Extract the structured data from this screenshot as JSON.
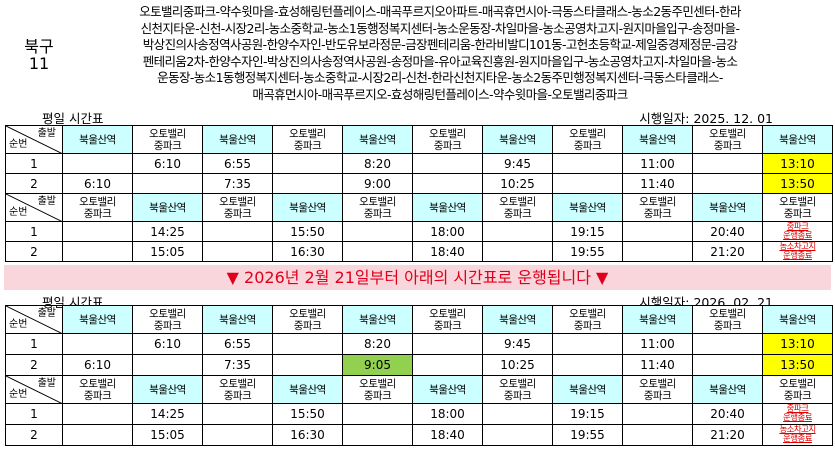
{
  "header": {
    "district": "북구",
    "route": "11",
    "stops": [
      "오토밸리중파크-약수윗마을-효성해링턴플레이스-매곡푸르지오아파트-매곡휴먼시아-극동스타클래스-농소2동주민센터-한라",
      "신천지타운-신천-시장2리-농소중학교-농소1동행정복지센터-농소운동장-차일마을-농소공영차고지-원지마을입구-송정마을-",
      "박상진의사송정역사공원-한양수자인-반도유보라정문-금장펜테리움-한라비발디101동-고헌초등학교-제일중경제정문-금강",
      "펜테리움2차-한양수자인-박상진의사송정역사공원-송정마을-유아교육진흥원-원지마을입구-농소공영차고지-차일마을-농소",
      "운동장-농소1동행정복지센터-농소중학교-시장2리-신천-한라신천지타운-농소2동주민행정복지센터-극동스타클래스-",
      "매곡휴먼시아-매곡푸르지오-효성해링턴플레이스-약수윗마을-오토밸리중파크"
    ]
  },
  "notice": "▼ 2026년 2월 21일부터 아래의 시간표로 운행됩니다 ▼",
  "sections": [
    {
      "title": "평일 시간표",
      "date": "시행일자: 2025. 12. 01",
      "blocks": [
        {
          "corner": [
            "출발",
            "순번"
          ],
          "header": [
            "북울산역",
            [
              "오토밸리",
              "중파크"
            ],
            "북울산역",
            [
              "오토밸리",
              "중파크"
            ],
            "북울산역",
            [
              "오토밸리",
              "중파크"
            ],
            "북울산역",
            [
              "오토밸리",
              "중파크"
            ],
            "북울산역",
            [
              "오토밸리",
              "중파크"
            ],
            "북울산역"
          ],
          "rows": [
            [
              "1",
              null,
              "6:10",
              "6:55",
              null,
              "8:20",
              null,
              "9:45",
              null,
              "11:00",
              null,
              "13:10"
            ],
            [
              "2",
              "6:10",
              null,
              "7:35",
              null,
              "9:00",
              null,
              "10:25",
              null,
              "11:40",
              null,
              "13:50"
            ]
          ]
        },
        {
          "corner": [
            "출발",
            "순번"
          ],
          "header": [
            [
              "오토밸리",
              "중파크"
            ],
            "북울산역",
            [
              "오토밸리",
              "중파크"
            ],
            "북울산역",
            [
              "오토밸리",
              "중파크"
            ],
            "북울산역",
            [
              "오토밸리",
              "중파크"
            ],
            "북울산역",
            [
              "오토밸리",
              "중파크"
            ],
            "북울산역",
            [
              "오토밸리",
              "중파크"
            ]
          ],
          "rows": [
            [
              "1",
              null,
              "14:25",
              null,
              "15:50",
              null,
              "18:00",
              null,
              "19:15",
              null,
              "20:40",
              [
                "중파크",
                "운행종료"
              ]
            ],
            [
              "2",
              null,
              "15:05",
              null,
              "16:30",
              null,
              "18:40",
              null,
              "19:55",
              null,
              "21:20",
              [
                "농소차고지",
                "운행종료"
              ]
            ]
          ]
        }
      ]
    },
    {
      "title": "평일 시간표",
      "date": "시행일자: 2026. 02. 21",
      "blocks": [
        {
          "corner": [
            "출발",
            "순번"
          ],
          "header": [
            "북울산역",
            [
              "오토밸리",
              "중파크"
            ],
            "북울산역",
            [
              "오토밸리",
              "중파크"
            ],
            "북울산역",
            [
              "오토밸리",
              "중파크"
            ],
            "북울산역",
            [
              "오토밸리",
              "중파크"
            ],
            "북울산역",
            [
              "오토밸리",
              "중파크"
            ],
            "북울산역"
          ],
          "rows": [
            [
              "1",
              null,
              "6:10",
              "6:55",
              null,
              "8:20",
              null,
              "9:45",
              null,
              "11:00",
              null,
              "13:10"
            ],
            [
              "2",
              "6:10",
              null,
              "7:35",
              null,
              "9:05",
              null,
              "10:25",
              null,
              "11:40",
              null,
              "13:50"
            ]
          ]
        },
        {
          "corner": [
            "출발",
            "순번"
          ],
          "header": [
            [
              "오토밸리",
              "중파크"
            ],
            "북울산역",
            [
              "오토밸리",
              "중파크"
            ],
            "북울산역",
            [
              "오토밸리",
              "중파크"
            ],
            "북울산역",
            [
              "오토밸리",
              "중파크"
            ],
            "북울산역",
            [
              "오토밸리",
              "중파크"
            ],
            "북울산역",
            [
              "오토밸리",
              "중파크"
            ]
          ],
          "rows": [
            [
              "1",
              null,
              "14:25",
              null,
              "15:50",
              null,
              "18:00",
              null,
              "19:15",
              null,
              "20:40",
              [
                "중파크",
                "운행종료"
              ]
            ],
            [
              "2",
              null,
              "15:05",
              null,
              "16:30",
              null,
              "18:40",
              null,
              "19:55",
              null,
              "21:20",
              [
                "농소차고지",
                "운행종료"
              ]
            ]
          ]
        }
      ]
    }
  ]
}
